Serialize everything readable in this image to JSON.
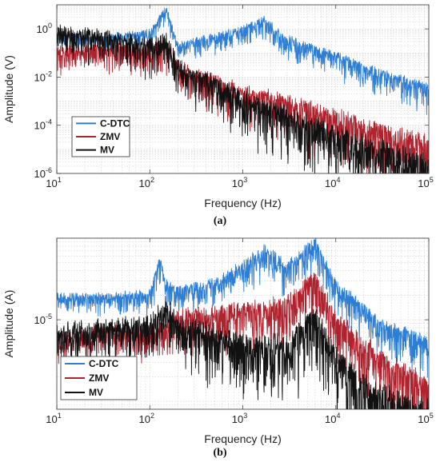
{
  "chart_data": [
    {
      "type": "line",
      "caption": "(a)",
      "xlabel": "Frequency (Hz)",
      "ylabel": "Amplitude (V)",
      "xscale": "log",
      "yscale": "log",
      "xlim": [
        10,
        100000
      ],
      "ylim": [
        1e-06,
        10
      ],
      "grid": true,
      "legend_position": "bottom-left",
      "x_ticks": [
        {
          "base": "10",
          "exp": "1"
        },
        {
          "base": "10",
          "exp": "2"
        },
        {
          "base": "10",
          "exp": "3"
        },
        {
          "base": "10",
          "exp": "4"
        },
        {
          "base": "10",
          "exp": "5"
        }
      ],
      "y_ticks": [
        {
          "base": "10",
          "exp": "0"
        },
        {
          "base": "10",
          "exp": "-2"
        },
        {
          "base": "10",
          "exp": "-4"
        },
        {
          "base": "10",
          "exp": "-6"
        }
      ],
      "series": [
        {
          "name": "C-DTC",
          "color": "#2e7ed3",
          "x": [
            10,
            30,
            100,
            150,
            200,
            500,
            1000,
            1700,
            3000,
            10000,
            30000,
            100000
          ],
          "y": [
            0.6,
            0.5,
            0.9,
            8,
            0.25,
            0.6,
            1.2,
            3,
            0.5,
            0.1,
            0.02,
            0.005
          ]
        },
        {
          "name": "ZMV",
          "color": "#b0232e",
          "x": [
            10,
            30,
            100,
            150,
            200,
            500,
            1000,
            3000,
            10000,
            30000,
            100000
          ],
          "y": [
            0.15,
            0.2,
            0.2,
            0.3,
            0.04,
            0.01,
            0.004,
            0.0015,
            0.0004,
            0.0001,
            3e-05
          ]
        },
        {
          "name": "MV",
          "color": "#111111",
          "x": [
            10,
            30,
            100,
            150,
            200,
            500,
            1000,
            3000,
            10000,
            30000,
            100000
          ],
          "y": [
            1.0,
            0.7,
            0.3,
            0.5,
            0.05,
            0.008,
            0.002,
            0.0005,
            8e-05,
            2e-05,
            5e-06
          ]
        }
      ]
    },
    {
      "type": "line",
      "caption": "(b)",
      "xlabel": "Frequency (Hz)",
      "ylabel": "Amplitude (A)",
      "xscale": "log",
      "yscale": "log",
      "xlim": [
        10,
        100000
      ],
      "ylim": [
        8e-07,
        0.0001
      ],
      "grid": true,
      "legend_position": "bottom-left",
      "x_ticks": [
        {
          "base": "10",
          "exp": "1"
        },
        {
          "base": "10",
          "exp": "2"
        },
        {
          "base": "10",
          "exp": "3"
        },
        {
          "base": "10",
          "exp": "4"
        },
        {
          "base": "10",
          "exp": "5"
        }
      ],
      "y_ticks": [
        {
          "base": "10",
          "exp": "-5"
        }
      ],
      "series": [
        {
          "name": "C-DTC",
          "color": "#2e7ed3",
          "x": [
            10,
            30,
            100,
            130,
            150,
            200,
            500,
            1000,
            1700,
            3000,
            6000,
            10000,
            30000,
            100000
          ],
          "y": [
            2e-05,
            2e-05,
            2.2e-05,
            6e-05,
            3e-05,
            2.5e-05,
            3e-05,
            5e-05,
            8e-05,
            5e-05,
            0.0001,
            3e-05,
            1e-05,
            6e-06
          ]
        },
        {
          "name": "ZMV",
          "color": "#b0232e",
          "x": [
            10,
            30,
            100,
            150,
            200,
            500,
            1000,
            3000,
            6000,
            10000,
            30000,
            100000
          ],
          "y": [
            6e-06,
            8e-06,
            8e-06,
            1e-05,
            1.2e-05,
            1.4e-05,
            1.5e-05,
            1.8e-05,
            4e-05,
            1.2e-05,
            4e-06,
            2e-06
          ]
        },
        {
          "name": "MV",
          "color": "#111111",
          "x": [
            10,
            30,
            100,
            150,
            200,
            500,
            1000,
            3000,
            6000,
            10000,
            30000,
            100000
          ],
          "y": [
            8e-06,
            9e-06,
            1e-05,
            1.8e-05,
            1e-05,
            8e-06,
            6e-06,
            6e-06,
            1.4e-05,
            4e-06,
            1.5e-06,
            1e-06
          ]
        }
      ]
    }
  ]
}
